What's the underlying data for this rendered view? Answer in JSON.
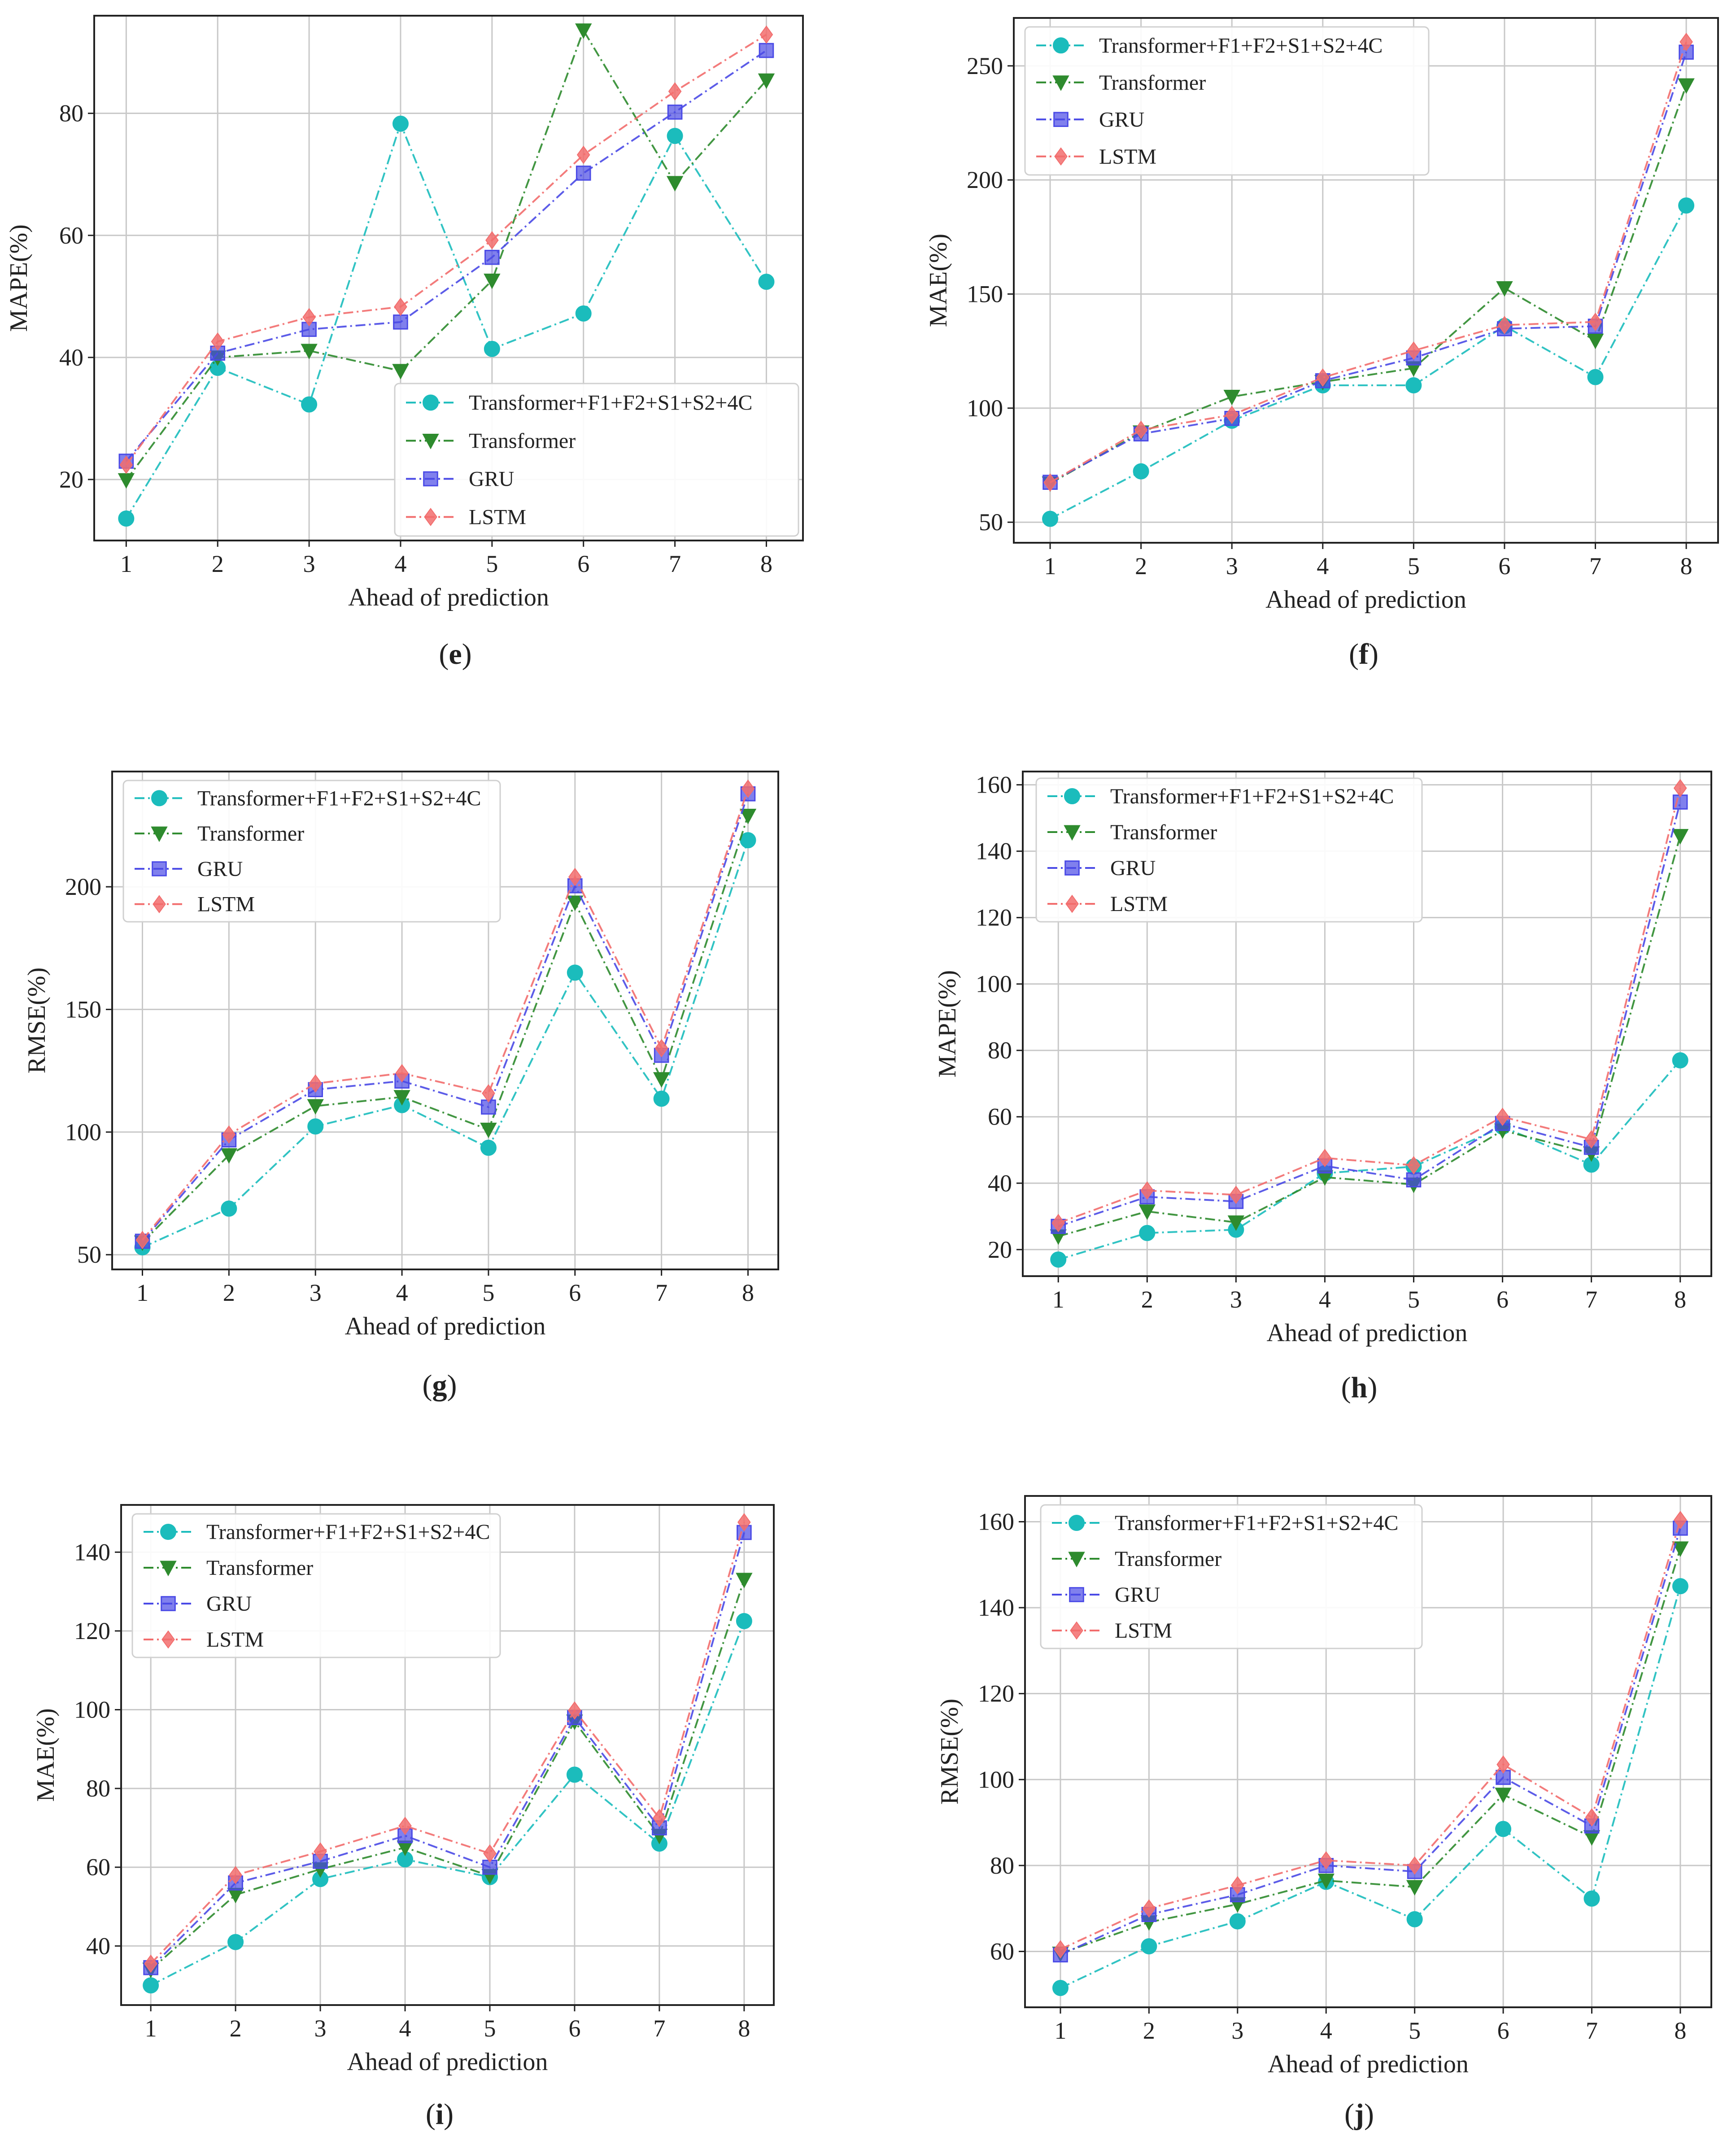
{
  "legend_labels": [
    "Transformer+F1+F2+S1+S2+4C",
    "Transformer",
    "GRU",
    "LSTM"
  ],
  "series_colors": [
    "#1bbcbc",
    "#2e8b2e",
    "#4a4ae6",
    "#f26d6d"
  ],
  "series_markers": [
    "circle",
    "triangle-down",
    "square",
    "diamond"
  ],
  "chart_data": [
    {
      "type": "line",
      "panel": "(e)",
      "panel_letter": "e",
      "xlabel": "Ahead of prediction",
      "ylabel": "MAPE(%)",
      "x": [
        1,
        2,
        3,
        4,
        5,
        6,
        7,
        8
      ],
      "xticks": [
        1,
        2,
        3,
        4,
        5,
        6,
        7,
        8
      ],
      "xlim": [
        0.65,
        8.4
      ],
      "ylim": [
        10,
        96
      ],
      "yticks": [
        20,
        40,
        60,
        80
      ],
      "grid": true,
      "legend_position": "lower-right",
      "series": [
        {
          "name": "Transformer+F1+F2+S1+S2+4C",
          "values": [
            13.6,
            38.3,
            32.3,
            78.3,
            41.4,
            47.2,
            76.3,
            52.4
          ]
        },
        {
          "name": "Transformer",
          "values": [
            19.9,
            40.0,
            41.1,
            37.8,
            52.6,
            93.6,
            68.6,
            85.4
          ]
        },
        {
          "name": "GRU",
          "values": [
            23.0,
            40.7,
            44.6,
            45.8,
            56.4,
            70.2,
            80.2,
            90.3
          ]
        },
        {
          "name": "LSTM",
          "values": [
            22.4,
            42.6,
            46.6,
            48.3,
            59.2,
            73.2,
            83.6,
            92.9
          ]
        }
      ]
    },
    {
      "type": "line",
      "panel": "(f)",
      "panel_letter": "f",
      "xlabel": "Ahead of prediction",
      "ylabel": "MAE(%)",
      "x": [
        1,
        2,
        3,
        4,
        5,
        6,
        7,
        8
      ],
      "xticks": [
        1,
        2,
        3,
        4,
        5,
        6,
        7,
        8
      ],
      "xlim": [
        0.6,
        8.35
      ],
      "ylim": [
        41,
        271
      ],
      "yticks": [
        50,
        100,
        150,
        200,
        250
      ],
      "grid": true,
      "legend_position": "top-left",
      "series": [
        {
          "name": "Transformer+F1+F2+S1+S2+4C",
          "values": [
            51.5,
            72.3,
            94.5,
            110.0,
            110.0,
            136.0,
            113.6,
            188.8
          ]
        },
        {
          "name": "Transformer",
          "values": [
            67.0,
            89.4,
            105.0,
            111.5,
            117.5,
            152.6,
            129.6,
            241.5
          ]
        },
        {
          "name": "GRU",
          "values": [
            67.5,
            88.7,
            95.5,
            112.0,
            122.0,
            134.8,
            135.9,
            256.0
          ]
        },
        {
          "name": "LSTM",
          "values": [
            67.4,
            90.5,
            97.0,
            113.4,
            125.2,
            136.4,
            137.8,
            260.5
          ]
        }
      ]
    },
    {
      "type": "line",
      "panel": "(g)",
      "panel_letter": "g",
      "xlabel": "Ahead of prediction",
      "ylabel": "RMSE(%)",
      "x": [
        1,
        2,
        3,
        4,
        5,
        6,
        7,
        8
      ],
      "xticks": [
        1,
        2,
        3,
        4,
        5,
        6,
        7,
        8
      ],
      "xlim": [
        0.65,
        8.35
      ],
      "ylim": [
        44,
        247
      ],
      "yticks": [
        50,
        100,
        150,
        200
      ],
      "grid": true,
      "legend_position": "top-left",
      "series": [
        {
          "name": "Transformer+F1+F2+S1+S2+4C",
          "values": [
            53.0,
            68.8,
            102.3,
            111.0,
            93.6,
            165.0,
            113.6,
            219.0
          ]
        },
        {
          "name": "Transformer",
          "values": [
            55.0,
            90.6,
            110.6,
            114.3,
            101.0,
            193.6,
            121.6,
            229.0
          ]
        },
        {
          "name": "GRU",
          "values": [
            55.5,
            96.8,
            117.3,
            120.8,
            110.2,
            200.4,
            131.3,
            237.9
          ]
        },
        {
          "name": "LSTM",
          "values": [
            56.0,
            99.0,
            119.8,
            124.0,
            115.8,
            204.0,
            134.2,
            240.0
          ]
        }
      ]
    },
    {
      "type": "line",
      "panel": "(h)",
      "panel_letter": "h",
      "xlabel": "Ahead of prediction",
      "ylabel": "MAPE(%)",
      "x": [
        1,
        2,
        3,
        4,
        5,
        6,
        7,
        8
      ],
      "xticks": [
        1,
        2,
        3,
        4,
        5,
        6,
        7,
        8
      ],
      "xlim": [
        0.6,
        8.35
      ],
      "ylim": [
        12,
        164
      ],
      "yticks": [
        20,
        40,
        60,
        80,
        100,
        120,
        140,
        160
      ],
      "grid": true,
      "legend_position": "top-left",
      "series": [
        {
          "name": "Transformer+F1+F2+S1+S2+4C",
          "values": [
            17.0,
            25.0,
            26.0,
            43.0,
            45.0,
            57.0,
            45.6,
            77.0
          ]
        },
        {
          "name": "Transformer",
          "values": [
            24.0,
            31.5,
            28.2,
            41.8,
            39.6,
            55.9,
            49.0,
            144.6
          ]
        },
        {
          "name": "GRU",
          "values": [
            27.0,
            35.9,
            34.5,
            45.2,
            41.0,
            58.0,
            50.8,
            154.8
          ]
        },
        {
          "name": "LSTM",
          "values": [
            28.0,
            37.8,
            36.5,
            47.6,
            45.4,
            60.0,
            53.2,
            159.0
          ]
        }
      ]
    },
    {
      "type": "line",
      "panel": "(i)",
      "panel_letter": "i",
      "xlabel": "Ahead of prediction",
      "ylabel": "MAE(%)",
      "x": [
        1,
        2,
        3,
        4,
        5,
        6,
        7,
        8
      ],
      "xticks": [
        1,
        2,
        3,
        4,
        5,
        6,
        7,
        8
      ],
      "xlim": [
        0.65,
        8.35
      ],
      "ylim": [
        25,
        152
      ],
      "yticks": [
        40,
        60,
        80,
        100,
        120,
        140
      ],
      "grid": true,
      "legend_position": "top-left",
      "series": [
        {
          "name": "Transformer+F1+F2+S1+S2+4C",
          "values": [
            30.0,
            41.0,
            57.0,
            62.0,
            57.5,
            83.5,
            66.0,
            122.5
          ]
        },
        {
          "name": "Transformer",
          "values": [
            34.0,
            53.0,
            59.5,
            65.0,
            57.8,
            97.0,
            68.0,
            133.0
          ]
        },
        {
          "name": "GRU",
          "values": [
            34.5,
            56.0,
            61.5,
            68.0,
            60.0,
            98.0,
            70.0,
            145.0
          ]
        },
        {
          "name": "LSTM",
          "values": [
            35.5,
            58.0,
            64.0,
            70.5,
            63.5,
            99.8,
            72.5,
            147.6
          ]
        }
      ]
    },
    {
      "type": "line",
      "panel": "(j)",
      "panel_letter": "j",
      "xlabel": "Ahead of prediction",
      "ylabel": "RMSE(%)",
      "x": [
        1,
        2,
        3,
        4,
        5,
        6,
        7,
        8
      ],
      "xticks": [
        1,
        2,
        3,
        4,
        5,
        6,
        7,
        8
      ],
      "xlim": [
        0.6,
        8.35
      ],
      "ylim": [
        47,
        166
      ],
      "yticks": [
        60,
        80,
        100,
        120,
        140,
        160
      ],
      "grid": true,
      "legend_position": "top-left",
      "series": [
        {
          "name": "Transformer+F1+F2+S1+S2+4C",
          "values": [
            51.5,
            61.2,
            67.0,
            76.2,
            67.5,
            88.5,
            72.3,
            145.0
          ]
        },
        {
          "name": "Transformer",
          "values": [
            59.5,
            66.8,
            71.0,
            76.5,
            75.0,
            96.5,
            86.6,
            153.8
          ]
        },
        {
          "name": "GRU",
          "values": [
            59.2,
            68.6,
            73.2,
            80.0,
            78.6,
            100.5,
            89.2,
            158.5
          ]
        },
        {
          "name": "LSTM",
          "values": [
            60.5,
            70.0,
            75.4,
            81.2,
            80.0,
            103.5,
            91.2,
            160.4
          ]
        }
      ]
    }
  ]
}
